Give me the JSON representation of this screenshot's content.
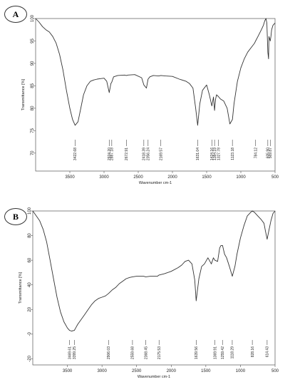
{
  "chart_data": [
    {
      "type": "line",
      "panel_label": "A",
      "xlabel": "Wavenumber cm-1",
      "ylabel": "Transmittance [%]",
      "xlim": [
        4000,
        500
      ],
      "ylim": [
        66,
        100
      ],
      "xticks": [
        3500,
        3000,
        2500,
        2000,
        1500,
        1000,
        500
      ],
      "yticks": [
        70,
        75,
        80,
        85,
        90,
        95,
        100
      ],
      "series": [
        {
          "x": [
            4000,
            3950,
            3900,
            3850,
            3800,
            3750,
            3700,
            3650,
            3600,
            3550,
            3500,
            3460,
            3423,
            3380,
            3340,
            3300,
            3250,
            3200,
            3150,
            3100,
            3050,
            3000,
            2960,
            2924,
            2900,
            2887,
            2860,
            2800,
            2700,
            2673,
            2650,
            2550,
            2450,
            2418,
            2380,
            2356,
            2330,
            2280,
            2200,
            2170,
            2100,
            2000,
            1900,
            1800,
            1750,
            1700,
            1660,
            1631,
            1600,
            1560,
            1500,
            1460,
            1424,
            1400,
            1384,
            1370,
            1355,
            1328,
            1300,
            1250,
            1200,
            1160,
            1123,
            1100,
            1050,
            1000,
            950,
            900,
            850,
            800,
            784,
            750,
            700,
            670,
            650,
            632,
            620,
            605,
            595,
            590,
            570,
            560,
            550,
            530,
            500
          ],
          "y": [
            100,
            99.2,
            98.2,
            97.5,
            97,
            96,
            94.5,
            92,
            88.5,
            84,
            80,
            77.5,
            76.2,
            77,
            80,
            83,
            85,
            86,
            86.3,
            86.5,
            86.6,
            86.7,
            86,
            83.5,
            85.5,
            85.8,
            87,
            87.3,
            87.4,
            87.3,
            87.4,
            87.5,
            86.8,
            85.2,
            84.5,
            86.5,
            87,
            87.3,
            87.2,
            87.3,
            87.2,
            87.1,
            86.5,
            86,
            85.5,
            84.5,
            80,
            76.2,
            81,
            84,
            85.2,
            83,
            80.5,
            82.5,
            79.5,
            82,
            83,
            82.6,
            82.1,
            81.6,
            80,
            76.5,
            77.5,
            81,
            86,
            89,
            91,
            92.5,
            93.5,
            94.5,
            95,
            96,
            97.5,
            98.5,
            99.5,
            100,
            99,
            92.5,
            91,
            96,
            95,
            96,
            97.5,
            98.5,
            99
          ]
        }
      ],
      "peak_labels": [
        "3422.68",
        "2924.20",
        "2887.18",
        "2672.91",
        "2418.39",
        "2356.24",
        "2169.57",
        "1631.04",
        "1424.16",
        "1384.19",
        "1327.78",
        "1123.18",
        "784.12",
        "605.90",
        "569.87"
      ],
      "peak_positions": [
        3422.68,
        2924.2,
        2887.18,
        2672.91,
        2418.39,
        2356.24,
        2169.57,
        1631.04,
        1424.16,
        1384.19,
        1327.78,
        1123.18,
        784.12,
        605.9,
        569.87
      ]
    },
    {
      "type": "line",
      "panel_label": "B",
      "xlabel": "Wavenumber cm-1",
      "ylabel": "Transmittance [%]",
      "xlim": [
        4000,
        500
      ],
      "ylim": [
        -25,
        100
      ],
      "xticks": [
        3500,
        3000,
        2500,
        2000,
        1500,
        1000,
        500
      ],
      "yticks": [
        -20,
        0,
        20,
        40,
        60,
        80,
        100
      ],
      "ytick_labels": [
        "-20",
        "-0",
        "20",
        "40",
        "60",
        "80",
        "100"
      ],
      "series": [
        {
          "x": [
            4000,
            3950,
            3900,
            3850,
            3800,
            3750,
            3700,
            3650,
            3600,
            3550,
            3500,
            3469,
            3440,
            3400,
            3380,
            3350,
            3300,
            3250,
            3200,
            3150,
            3100,
            3050,
            3000,
            2950,
            2906,
            2850,
            2800,
            2750,
            2700,
            2650,
            2600,
            2559,
            2500,
            2400,
            2368,
            2300,
            2200,
            2176,
            2100,
            2000,
            1900,
            1850,
            1800,
            1750,
            1700,
            1660,
            1640,
            1600,
            1560,
            1520,
            1500,
            1470,
            1420,
            1390,
            1370,
            1330,
            1300,
            1280,
            1259,
            1230,
            1200,
            1160,
            1118,
            1080,
            1050,
            1000,
            950,
            900,
            850,
            828,
            800,
            750,
            700,
            660,
            640,
            614,
            590,
            560,
            530,
            500
          ],
          "y": [
            100,
            96,
            92,
            85,
            75,
            60,
            45,
            30,
            18,
            10,
            5,
            3,
            2.5,
            3,
            5,
            8,
            12,
            16,
            20,
            24,
            27,
            29,
            30,
            31,
            33,
            36,
            38,
            41,
            43,
            45,
            46,
            46.5,
            47,
            47,
            46.5,
            47,
            47,
            48,
            49,
            51,
            54,
            56,
            59,
            60,
            57,
            44,
            27,
            45,
            55,
            57,
            59,
            62,
            57,
            62,
            60,
            59,
            70,
            72,
            72,
            65,
            62,
            55,
            47,
            55,
            65,
            78,
            88,
            96,
            99,
            100,
            99,
            96,
            93,
            90,
            84,
            77,
            84,
            92,
            98,
            100
          ]
        }
      ],
      "peak_labels": [
        "3469.61",
        "3399.25",
        "2906.03",
        "2559.68",
        "2368.45",
        "2175.53",
        "1639.56",
        "1369.91",
        "1259.42",
        "1118.29",
        "828.16",
        "614.43"
      ],
      "peak_positions": [
        3469.61,
        3399.25,
        2906.03,
        2559.68,
        2368.45,
        2175.53,
        1639.56,
        1369.91,
        1259.42,
        1118.29,
        828.16,
        614.43
      ]
    }
  ]
}
